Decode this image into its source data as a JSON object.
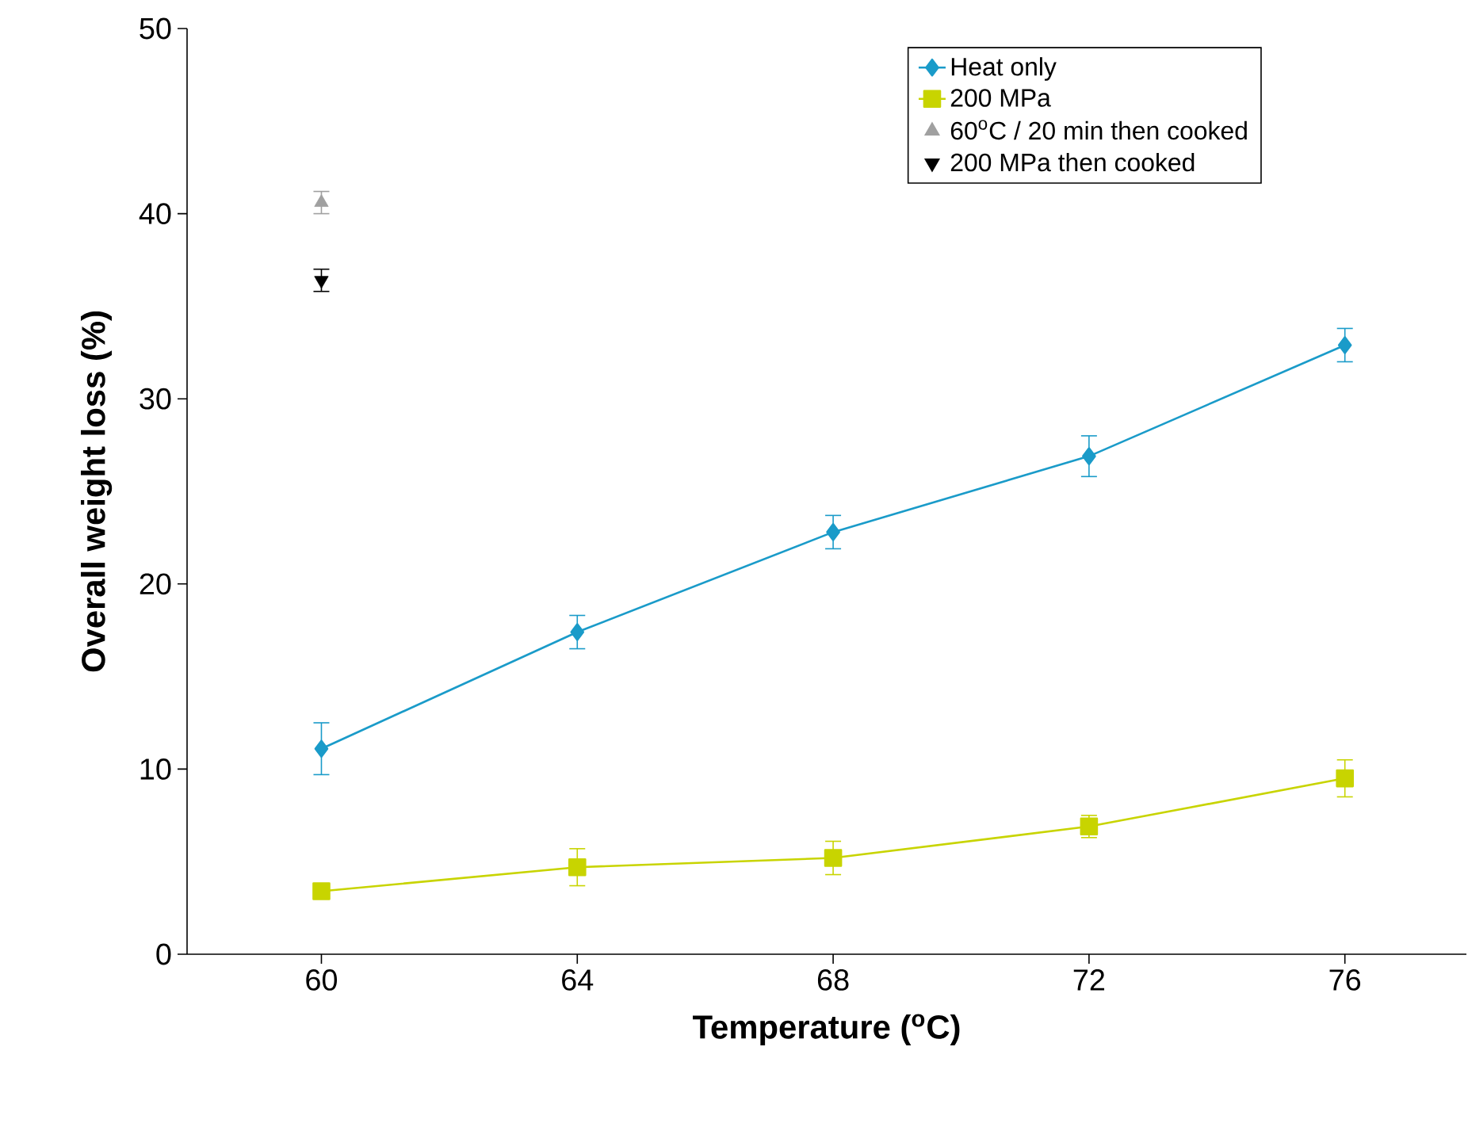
{
  "chart_data": {
    "type": "line",
    "xlabel": "Temperature ($^{o}$C)",
    "ylabel": "Overall weight loss (%)",
    "xlim": [
      57.9,
      77.9
    ],
    "ylim": [
      0,
      50
    ],
    "xticks": [
      60,
      64,
      68,
      72,
      76
    ],
    "yticks": [
      0,
      10,
      20,
      30,
      40,
      50
    ],
    "legend": "top right",
    "series": [
      {
        "name": "Heat only",
        "color": "#1a9bc9",
        "marker": "diamond",
        "x": [
          60,
          64,
          68,
          72,
          76
        ],
        "values": [
          11.1,
          17.4,
          22.8,
          26.9,
          32.9
        ],
        "errors": [
          1.4,
          0.9,
          0.9,
          1.1,
          0.9
        ]
      },
      {
        "name": "200 MPa",
        "color": "#c8d400",
        "marker": "square",
        "x": [
          60,
          64,
          68,
          72,
          76
        ],
        "values": [
          3.4,
          4.7,
          5.2,
          6.9,
          9.5
        ],
        "errors": [
          0.3,
          1.0,
          0.9,
          0.6,
          1.0
        ]
      },
      {
        "name": "60$^{o}$C / 20 min then cooked",
        "type": "scatter",
        "color": "#a0a0a0",
        "marker": "triangle",
        "x": [
          60
        ],
        "values": [
          40.6
        ],
        "errors": [
          0.6
        ]
      },
      {
        "name": "200 MPa then cooked",
        "type": "scatter",
        "color": "#000000",
        "marker": "triangle_down",
        "x": [
          60
        ],
        "values": [
          36.4
        ],
        "errors": [
          0.6
        ]
      }
    ]
  }
}
